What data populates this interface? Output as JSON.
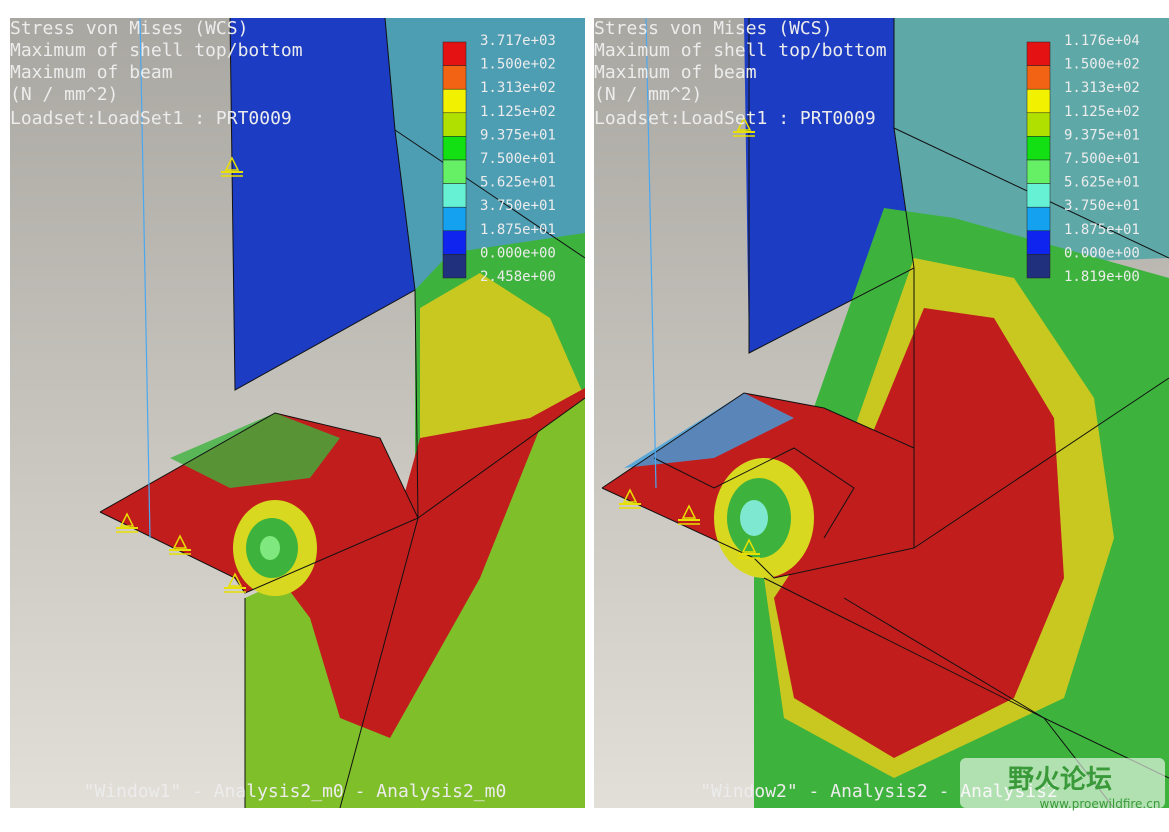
{
  "panels": [
    {
      "header": [
        "Stress von Mises (WCS)",
        "Maximum of shell top/bottom",
        "Maximum of beam",
        "(N / mm^2)",
        "Loadset:LoadSet1 :  PRT0009"
      ],
      "legend": [
        "3.717e+03",
        "1.500e+02",
        "1.313e+02",
        "1.125e+02",
        "9.375e+01",
        "7.500e+01",
        "5.625e+01",
        "3.750e+01",
        "1.875e+01",
        "0.000e+00",
        "2.458e+00"
      ],
      "footer": "\"Window1\" - Analysis2_m0 - Analysis2_m0"
    },
    {
      "header": [
        "Stress von Mises (WCS)",
        "Maximum of shell top/bottom",
        "Maximum of beam",
        "(N / mm^2)",
        "Loadset:LoadSet1 :  PRT0009"
      ],
      "legend": [
        "1.176e+04",
        "1.500e+02",
        "1.313e+02",
        "1.125e+02",
        "9.375e+01",
        "7.500e+01",
        "5.625e+01",
        "3.750e+01",
        "1.875e+01",
        "0.000e+00",
        "1.819e+00"
      ],
      "footer": "\"Window2\" - Analysis2 - Analysis2"
    }
  ],
  "watermark": {
    "title": "野火论坛",
    "url": "www.proewildfire.cn"
  }
}
